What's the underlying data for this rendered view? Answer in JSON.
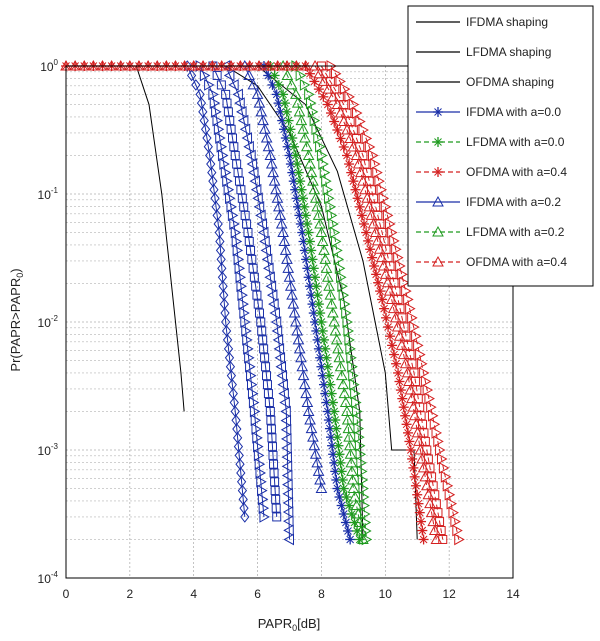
{
  "chart_data": {
    "type": "line",
    "title": "",
    "xlabel": "PAPR",
    "xlabel_sub": "0",
    "xlabel_unit": "[dB]",
    "ylabel": "Pr(PAPR>PAPR",
    "ylabel_sub": "0",
    "ylabel_end": ")",
    "xlim": [
      0,
      14
    ],
    "ylim": [
      0.0001,
      1
    ],
    "yscale": "log",
    "grid": true,
    "legend_position": "top-right",
    "x_ticks": [
      "0",
      "2",
      "4",
      "6",
      "8",
      "10",
      "12",
      "14"
    ],
    "y_ticks": [
      {
        "base": "10",
        "exp": "0"
      },
      {
        "base": "10",
        "exp": "-1"
      },
      {
        "base": "10",
        "exp": "-2"
      },
      {
        "base": "10",
        "exp": "-3"
      },
      {
        "base": "10",
        "exp": "-4"
      }
    ],
    "legend": [
      {
        "label": "IFDMA shaping",
        "color": "#000000",
        "marker": "none",
        "dash": "solid"
      },
      {
        "label": "LFDMA shaping",
        "color": "#000000",
        "marker": "none",
        "dash": "solid"
      },
      {
        "label": "OFDMA shaping",
        "color": "#000000",
        "marker": "none",
        "dash": "solid"
      },
      {
        "label": "IFDMA with a=0.0",
        "color": "#1a2fa8",
        "marker": "star",
        "dash": "solid"
      },
      {
        "label": "LFDMA with a=0.0",
        "color": "#1f9a1f",
        "marker": "star",
        "dash": "dash"
      },
      {
        "label": "OFDMA with a=0.4",
        "color": "#d42020",
        "marker": "star",
        "dash": "dash"
      },
      {
        "label": "IFDMA with a=0.2",
        "color": "#1a2fa8",
        "marker": "triangle",
        "dash": "solid"
      },
      {
        "label": "LFDMA with a=0.2",
        "color": "#1f9a1f",
        "marker": "triangle",
        "dash": "dash"
      },
      {
        "label": "OFDMA with a=0.4",
        "color": "#d42020",
        "marker": "triangle",
        "dash": "dash"
      }
    ],
    "series": [
      {
        "color": "#000000",
        "marker": "none",
        "dash": "solid",
        "points": [
          [
            0,
            1
          ],
          [
            2.2,
            1
          ],
          [
            2.6,
            0.5
          ],
          [
            3.0,
            0.1
          ],
          [
            3.3,
            0.02
          ],
          [
            3.6,
            0.004
          ],
          [
            3.7,
            0.002
          ]
        ]
      },
      {
        "color": "#000000",
        "marker": "none",
        "dash": "solid",
        "points": [
          [
            0,
            1
          ],
          [
            5,
            1
          ],
          [
            6,
            0.7
          ],
          [
            7,
            0.3
          ],
          [
            8,
            0.08
          ],
          [
            8.7,
            0.015
          ],
          [
            9.2,
            0.002
          ],
          [
            9.3,
            0.0002
          ]
        ]
      },
      {
        "color": "#000000",
        "marker": "none",
        "dash": "solid",
        "points": [
          [
            0,
            1
          ],
          [
            6,
            1
          ],
          [
            7.5,
            0.5
          ],
          [
            8.5,
            0.15
          ],
          [
            9.3,
            0.03
          ],
          [
            10,
            0.004
          ],
          [
            10.2,
            0.001
          ],
          [
            10.9,
            0.001
          ],
          [
            11,
            0.0002
          ]
        ]
      },
      {
        "color": "#1a2fa8",
        "marker": "diamond",
        "dash": "solid",
        "points": [
          [
            3.8,
            1
          ],
          [
            4.2,
            0.6
          ],
          [
            4.5,
            0.2
          ],
          [
            4.8,
            0.05
          ],
          [
            5.0,
            0.01
          ],
          [
            5.3,
            0.002
          ],
          [
            5.6,
            0.0003
          ]
        ]
      },
      {
        "color": "#1a2fa8",
        "marker": "triangle-right",
        "dash": "solid",
        "points": [
          [
            4.2,
            1
          ],
          [
            4.6,
            0.6
          ],
          [
            4.9,
            0.2
          ],
          [
            5.3,
            0.05
          ],
          [
            5.6,
            0.01
          ],
          [
            5.9,
            0.002
          ],
          [
            6.2,
            0.0003
          ]
        ]
      },
      {
        "color": "#1a2fa8",
        "marker": "square",
        "dash": "solid",
        "points": [
          [
            4.6,
            1
          ],
          [
            5.0,
            0.6
          ],
          [
            5.3,
            0.2
          ],
          [
            5.7,
            0.05
          ],
          [
            6.1,
            0.01
          ],
          [
            6.4,
            0.002
          ],
          [
            6.6,
            0.0003
          ]
        ]
      },
      {
        "color": "#1a2fa8",
        "marker": "triangle-left",
        "dash": "solid",
        "points": [
          [
            5.0,
            1
          ],
          [
            5.4,
            0.6
          ],
          [
            5.8,
            0.2
          ],
          [
            6.2,
            0.05
          ],
          [
            6.6,
            0.01
          ],
          [
            6.9,
            0.002
          ],
          [
            7.0,
            0.0002
          ]
        ]
      },
      {
        "color": "#1a2fa8",
        "marker": "triangle",
        "dash": "solid",
        "points": [
          [
            5.6,
            1
          ],
          [
            6.0,
            0.6
          ],
          [
            6.4,
            0.2
          ],
          [
            6.8,
            0.05
          ],
          [
            7.2,
            0.01
          ],
          [
            7.6,
            0.002
          ],
          [
            8.0,
            0.0005
          ]
        ]
      },
      {
        "color": "#1a2fa8",
        "marker": "star",
        "dash": "solid",
        "points": [
          [
            6.2,
            1
          ],
          [
            6.6,
            0.6
          ],
          [
            7.0,
            0.2
          ],
          [
            7.4,
            0.05
          ],
          [
            7.8,
            0.01
          ],
          [
            8.2,
            0.002
          ],
          [
            8.5,
            0.0005
          ],
          [
            8.9,
            0.0002
          ]
        ]
      },
      {
        "color": "#1f9a1f",
        "marker": "star",
        "dash": "dash",
        "points": [
          [
            6.4,
            1
          ],
          [
            6.8,
            0.6
          ],
          [
            7.2,
            0.2
          ],
          [
            7.6,
            0.05
          ],
          [
            8.0,
            0.01
          ],
          [
            8.4,
            0.002
          ],
          [
            8.7,
            0.0005
          ],
          [
            9.2,
            0.0002
          ]
        ]
      },
      {
        "color": "#1f9a1f",
        "marker": "triangle",
        "dash": "dash",
        "points": [
          [
            6.8,
            1
          ],
          [
            7.2,
            0.6
          ],
          [
            7.6,
            0.2
          ],
          [
            8.0,
            0.05
          ],
          [
            8.4,
            0.01
          ],
          [
            8.8,
            0.002
          ],
          [
            9.0,
            0.0005
          ],
          [
            9.3,
            0.0002
          ]
        ]
      },
      {
        "color": "#1f9a1f",
        "marker": "triangle-right",
        "dash": "dash",
        "points": [
          [
            7.2,
            1
          ],
          [
            7.6,
            0.6
          ],
          [
            8.0,
            0.2
          ],
          [
            8.4,
            0.05
          ],
          [
            8.8,
            0.01
          ],
          [
            9.1,
            0.002
          ],
          [
            9.3,
            0.0005
          ],
          [
            9.4,
            0.0002
          ]
        ]
      },
      {
        "color": "#d42020",
        "marker": "star",
        "dash": "dash",
        "points": [
          [
            0,
            1
          ],
          [
            4,
            1
          ],
          [
            7.5,
            1
          ],
          [
            8.2,
            0.5
          ],
          [
            8.8,
            0.2
          ],
          [
            9.4,
            0.05
          ],
          [
            9.9,
            0.015
          ],
          [
            10.4,
            0.004
          ],
          [
            10.8,
            0.001
          ],
          [
            11.2,
            0.0002
          ]
        ]
      },
      {
        "color": "#d42020",
        "marker": "triangle",
        "dash": "dash",
        "points": [
          [
            0,
            1
          ],
          [
            4,
            1
          ],
          [
            7.8,
            1
          ],
          [
            8.5,
            0.5
          ],
          [
            9.1,
            0.2
          ],
          [
            9.7,
            0.05
          ],
          [
            10.2,
            0.015
          ],
          [
            10.7,
            0.004
          ],
          [
            11.1,
            0.001
          ],
          [
            11.6,
            0.0002
          ]
        ]
      },
      {
        "color": "#d42020",
        "marker": "square",
        "dash": "dash",
        "points": [
          [
            8.0,
            1
          ],
          [
            8.7,
            0.5
          ],
          [
            9.3,
            0.2
          ],
          [
            9.9,
            0.05
          ],
          [
            10.4,
            0.015
          ],
          [
            10.9,
            0.004
          ],
          [
            11.3,
            0.001
          ],
          [
            11.8,
            0.0002
          ]
        ]
      },
      {
        "color": "#d42020",
        "marker": "triangle-right",
        "dash": "dash",
        "points": [
          [
            8.3,
            1
          ],
          [
            9.0,
            0.5
          ],
          [
            9.6,
            0.2
          ],
          [
            10.2,
            0.05
          ],
          [
            10.7,
            0.015
          ],
          [
            11.2,
            0.004
          ],
          [
            11.7,
            0.001
          ],
          [
            12.3,
            0.0002
          ]
        ]
      }
    ]
  }
}
